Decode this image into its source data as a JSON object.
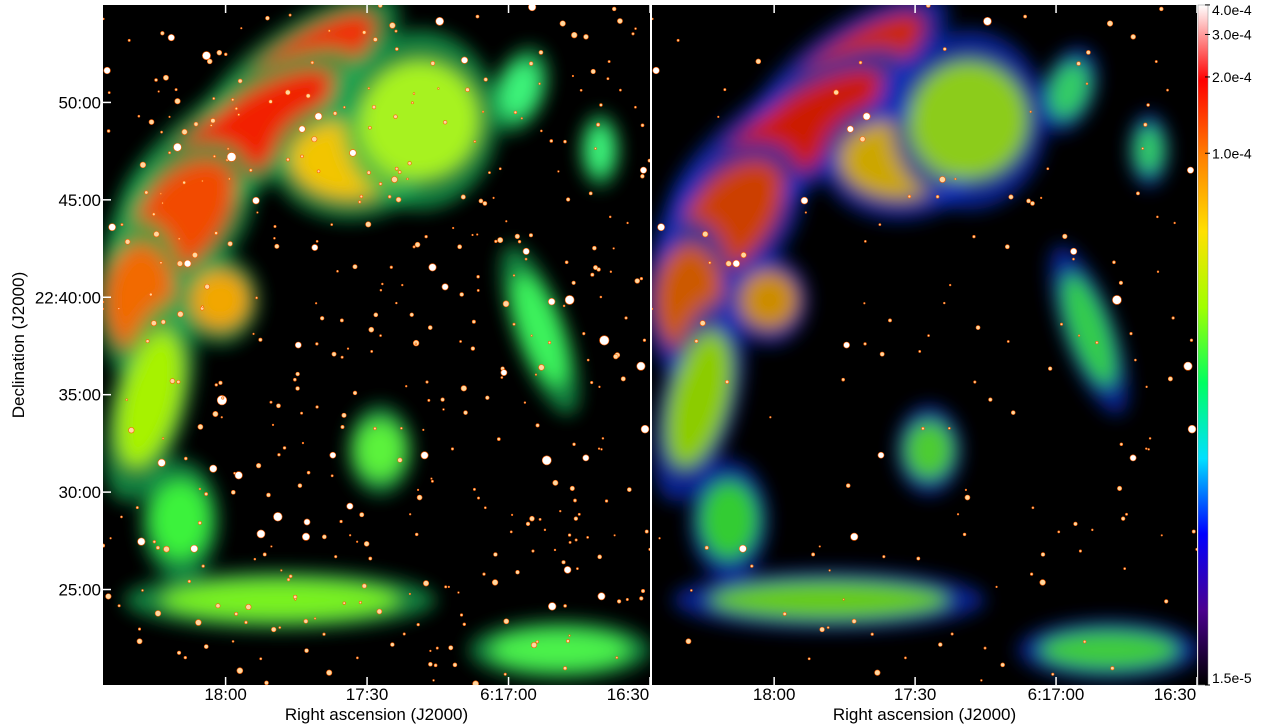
{
  "chart_data": [
    {
      "type": "image",
      "xlabel": "Right ascension (J2000)",
      "ylabel": "Declination (J2000)",
      "xlim": [
        22706,
        22590
      ],
      "xticks": [
        {
          "value": 22680,
          "label": "18:00"
        },
        {
          "value": 22650,
          "label": "17:30"
        },
        {
          "value": 22620,
          "label": "6:17:00"
        },
        {
          "value": 22590,
          "label": "16:30"
        }
      ],
      "ylim": [
        1340.1,
        1375.0
      ],
      "yticks": [
        {
          "value": 1345,
          "label": "25:00"
        },
        {
          "value": 1350,
          "label": "30:00"
        },
        {
          "value": 1355,
          "label": "35:00"
        },
        {
          "value": 1360,
          "label": "22:40:00"
        },
        {
          "value": 1365,
          "label": "45:00"
        },
        {
          "value": 1370,
          "label": "50:00"
        }
      ]
    },
    {
      "type": "image",
      "xlabel": "Right ascension (J2000)",
      "xlim": [
        22706,
        22590
      ],
      "xticks": [
        {
          "value": 22680,
          "label": "18:00"
        },
        {
          "value": 22650,
          "label": "17:30"
        },
        {
          "value": 22620,
          "label": "6:17:00"
        },
        {
          "value": 22590,
          "label": "16:30"
        }
      ],
      "ylim": [
        1340.1,
        1375.0
      ],
      "clim": [
        1.5e-05,
        0.0004
      ],
      "cscale": "log",
      "colormap": [
        "#000000",
        "#4b0090",
        "#0000ff",
        "#00e0ff",
        "#00ff60",
        "#a0ff00",
        "#ffe000",
        "#ff8000",
        "#ff0000",
        "#ffffff"
      ],
      "cticks": [
        {
          "value": 1.5e-05,
          "label": "1.5e-5"
        },
        {
          "value": 0.0001,
          "label": "1.0e-4"
        },
        {
          "value": 0.0002,
          "label": "2.0e-4"
        },
        {
          "value": 0.0003,
          "label": "3.0e-4"
        },
        {
          "value": 0.0004,
          "label": "4.0e-4"
        }
      ]
    }
  ]
}
